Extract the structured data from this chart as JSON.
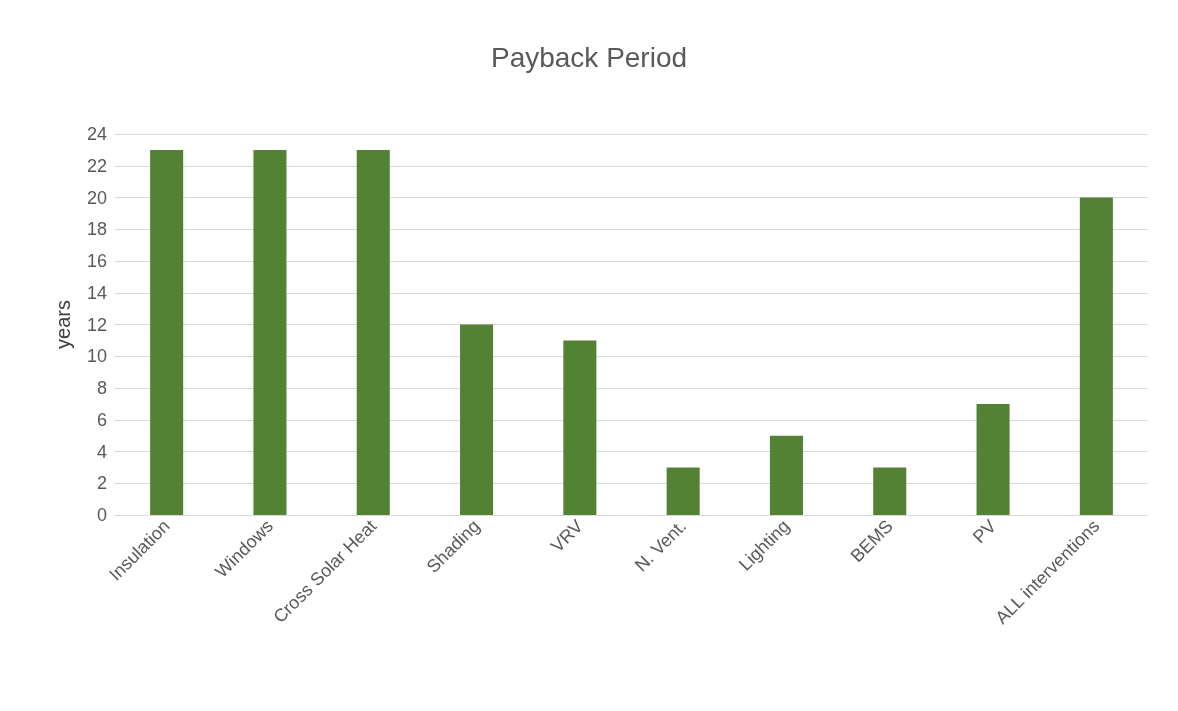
{
  "chart_data": {
    "type": "bar",
    "title": "Payback Period",
    "ylabel": "years",
    "categories": [
      "Insulation",
      "Windows",
      "Cross Solar Heat",
      "Shading",
      "VRV",
      "N. Vent.",
      "Lighting",
      "BEMS",
      "PV",
      "ALL interventions"
    ],
    "values": [
      23,
      23,
      23,
      12,
      11,
      3,
      5,
      3,
      7,
      20
    ],
    "color": "#548235",
    "ylim": [
      0,
      24
    ],
    "yticks": [
      0,
      2,
      4,
      6,
      8,
      10,
      12,
      14,
      16,
      18,
      20,
      22,
      24
    ],
    "grid": "y"
  }
}
